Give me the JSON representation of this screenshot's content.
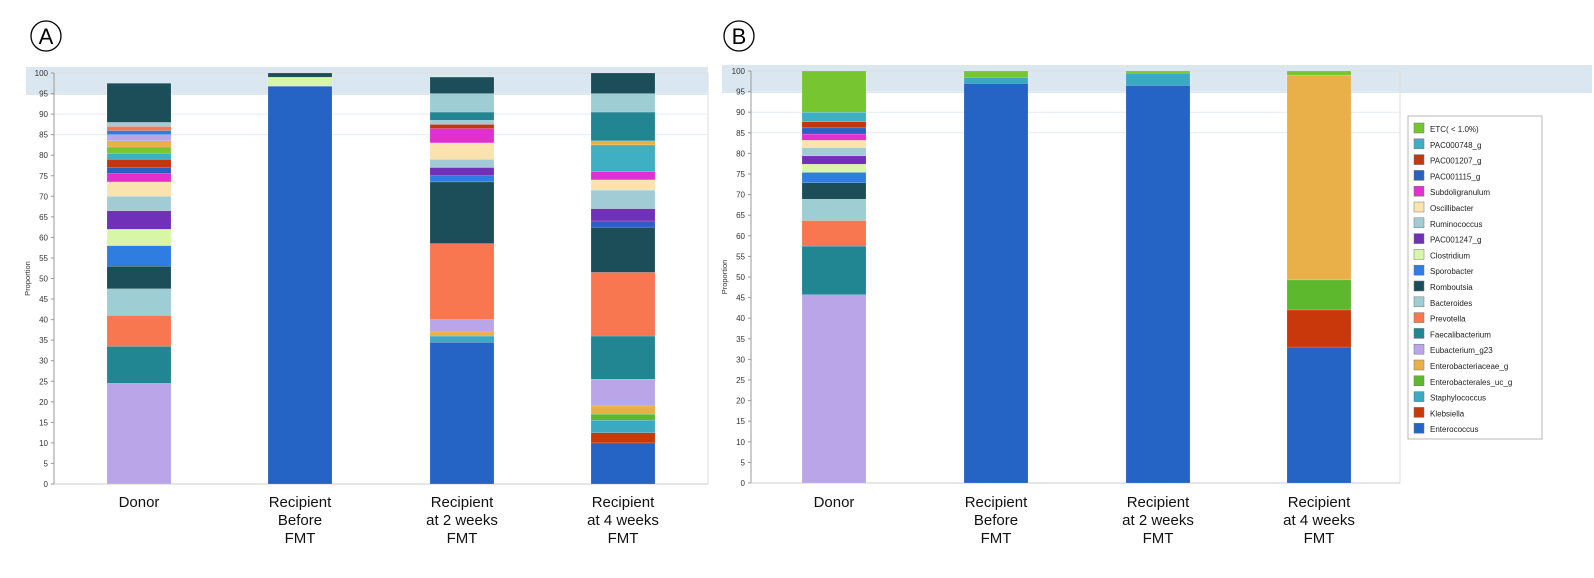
{
  "panels": {
    "a": {
      "label": "A"
    },
    "b": {
      "label": "B"
    }
  },
  "colors": {
    "Enterococcus": "#2563c4",
    "Klebsiella": "#c8380a",
    "Staphylococcus": "#3aaac2",
    "Enterobacterales_uc_g": "#5db82e",
    "Enterobacteriaceae_g": "#e9b04a",
    "Eubacterium_g23": "#b9a5e8",
    "Faecalibacterium": "#218592",
    "Prevotella": "#f87650",
    "Bacteroides": "#9fcdd4",
    "Romboutsia": "#1c4e59",
    "Sporobacter": "#2f7de0",
    "Clostridium": "#d8f7a6",
    "PAC001247_g": "#7030b8",
    "Ruminococcus": "#a1ccd6",
    "Oscillibacter": "#fbe3b0",
    "Subdoligranulum": "#e030cf",
    "PAC001115_g": "#2c5fc4",
    "PAC001207_g": "#c53510",
    "PAC000748_g": "#3fb0c4",
    "ETC": "#77c530",
    "band": "#dbe7f0",
    "axis": "#999999"
  },
  "legend": {
    "items": [
      {
        "key": "ETC",
        "label": "ETC( < 1.0%)"
      },
      {
        "key": "PAC000748_g",
        "label": "PAC000748_g"
      },
      {
        "key": "PAC001207_g",
        "label": "PAC001207_g"
      },
      {
        "key": "PAC001115_g",
        "label": "PAC001115_g"
      },
      {
        "key": "Subdoligranulum",
        "label": "Subdoligranulum"
      },
      {
        "key": "Oscillibacter",
        "label": "Oscillibacter"
      },
      {
        "key": "Ruminococcus",
        "label": "Ruminococcus"
      },
      {
        "key": "PAC001247_g",
        "label": "PAC001247_g"
      },
      {
        "key": "Clostridium",
        "label": "Clostridium"
      },
      {
        "key": "Sporobacter",
        "label": "Sporobacter"
      },
      {
        "key": "Romboutsia",
        "label": "Romboutsia"
      },
      {
        "key": "Bacteroides",
        "label": "Bacteroides"
      },
      {
        "key": "Prevotella",
        "label": "Prevotella"
      },
      {
        "key": "Faecalibacterium",
        "label": "Faecalibacterium"
      },
      {
        "key": "Eubacterium_g23",
        "label": "Eubacterium_g23"
      },
      {
        "key": "Enterobacteriaceae_g",
        "label": "Enterobacteriaceae_g"
      },
      {
        "key": "Enterobacterales_uc_g",
        "label": "Enterobacterales_uc_g"
      },
      {
        "key": "Staphylococcus",
        "label": "Staphylococcus"
      },
      {
        "key": "Klebsiella",
        "label": "Klebsiella"
      },
      {
        "key": "Enterococcus",
        "label": "Enterococcus"
      }
    ]
  },
  "chart_data": [
    {
      "type": "bar",
      "stacked": true,
      "panel": "A",
      "ylabel": "Proportion",
      "ylim": [
        0,
        100
      ],
      "yticks": [
        0,
        5,
        10,
        15,
        20,
        25,
        30,
        35,
        40,
        45,
        50,
        55,
        60,
        65,
        70,
        75,
        80,
        85,
        90,
        95,
        100
      ],
      "categories": [
        [
          "Donor"
        ],
        [
          "Recipient",
          "Before",
          "FMT"
        ],
        [
          "Recipient",
          "at 2 weeks",
          "FMT"
        ],
        [
          "Recipient",
          "at 4 weeks",
          "FMT"
        ]
      ],
      "bars": [
        [
          {
            "taxon": "Eubacterium_g23",
            "value": 24.5
          },
          {
            "taxon": "Faecalibacterium",
            "value": 9
          },
          {
            "taxon": "Prevotella",
            "value": 7.5
          },
          {
            "taxon": "Bacteroides",
            "value": 6.5
          },
          {
            "taxon": "Romboutsia",
            "value": 5.5
          },
          {
            "taxon": "Sporobacter",
            "value": 5
          },
          {
            "taxon": "Clostridium",
            "value": 4
          },
          {
            "taxon": "PAC001247_g",
            "value": 4.5
          },
          {
            "taxon": "Ruminococcus",
            "value": 3.5
          },
          {
            "taxon": "Oscillibacter",
            "value": 3.5
          },
          {
            "taxon": "Subdoligranulum",
            "value": 2
          },
          {
            "taxon": "PAC001115_g",
            "value": 1.5
          },
          {
            "taxon": "PAC001207_g",
            "value": 2
          },
          {
            "taxon": "PAC000748_g",
            "value": 1.5
          },
          {
            "taxon": "ETC",
            "value": 1.5
          },
          {
            "taxon": "Enterobacteriaceae_g",
            "value": 1.5
          },
          {
            "taxon": "Eubacterium_g23",
            "value": 1.5
          },
          {
            "taxon": "Sporobacter",
            "value": 1
          },
          {
            "taxon": "Prevotella",
            "value": 1
          },
          {
            "taxon": "Bacteroides",
            "value": 1
          },
          {
            "taxon": "Romboutsia",
            "value": 9.5
          }
        ],
        [
          {
            "taxon": "Enterococcus",
            "value": 96.8
          },
          {
            "taxon": "Clostridium",
            "value": 2.2
          },
          {
            "taxon": "Romboutsia",
            "value": 1
          }
        ],
        [
          {
            "taxon": "Enterococcus",
            "value": 34.5
          },
          {
            "taxon": "Staphylococcus",
            "value": 1.5
          },
          {
            "taxon": "Enterobacteriaceae_g",
            "value": 1
          },
          {
            "taxon": "Eubacterium_g23",
            "value": 3
          },
          {
            "taxon": "Prevotella",
            "value": 18.5
          },
          {
            "taxon": "Romboutsia",
            "value": 15
          },
          {
            "taxon": "Sporobacter",
            "value": 1.5
          },
          {
            "taxon": "PAC001247_g",
            "value": 2
          },
          {
            "taxon": "Ruminococcus",
            "value": 2
          },
          {
            "taxon": "Oscillibacter",
            "value": 4
          },
          {
            "taxon": "Subdoligranulum",
            "value": 3.5
          },
          {
            "taxon": "PAC001207_g",
            "value": 1
          },
          {
            "taxon": "Ruminococcus",
            "value": 1
          },
          {
            "taxon": "Faecalibacterium",
            "value": 2
          },
          {
            "taxon": "Bacteroides",
            "value": 4.5
          },
          {
            "taxon": "Romboutsia",
            "value": 4
          }
        ],
        [
          {
            "taxon": "Enterococcus",
            "value": 10
          },
          {
            "taxon": "Klebsiella",
            "value": 2.5
          },
          {
            "taxon": "Staphylococcus",
            "value": 3
          },
          {
            "taxon": "Enterobacterales_uc_g",
            "value": 1.5
          },
          {
            "taxon": "Enterobacteriaceae_g",
            "value": 2
          },
          {
            "taxon": "Eubacterium_g23",
            "value": 6.5
          },
          {
            "taxon": "Faecalibacterium",
            "value": 10.5
          },
          {
            "taxon": "Prevotella",
            "value": 15.5
          },
          {
            "taxon": "Romboutsia",
            "value": 11
          },
          {
            "taxon": "PAC001115_g",
            "value": 1.5
          },
          {
            "taxon": "PAC001247_g",
            "value": 3
          },
          {
            "taxon": "Ruminococcus",
            "value": 4.5
          },
          {
            "taxon": "Oscillibacter",
            "value": 2.5
          },
          {
            "taxon": "Subdoligranulum",
            "value": 2
          },
          {
            "taxon": "PAC000748_g",
            "value": 6.5
          },
          {
            "taxon": "Enterobacteriaceae_g",
            "value": 1
          },
          {
            "taxon": "Faecalibacterium",
            "value": 7
          },
          {
            "taxon": "Bacteroides",
            "value": 4.5
          },
          {
            "taxon": "Romboutsia",
            "value": 5
          }
        ]
      ]
    },
    {
      "type": "bar",
      "stacked": true,
      "panel": "B",
      "ylabel": "Proportion",
      "ylim": [
        0,
        100
      ],
      "yticks": [
        0,
        5,
        10,
        15,
        20,
        25,
        30,
        35,
        40,
        45,
        50,
        55,
        60,
        65,
        70,
        75,
        80,
        85,
        90,
        95,
        100
      ],
      "legend_position": "right",
      "categories": [
        [
          "Donor"
        ],
        [
          "Recipient",
          "Before",
          "FMT"
        ],
        [
          "Recipient",
          "at 2 weeks",
          "FMT"
        ],
        [
          "Recipient",
          "at 4 weeks",
          "FMT"
        ]
      ],
      "bars": [
        [
          {
            "taxon": "Eubacterium_g23",
            "value": 45.7
          },
          {
            "taxon": "Faecalibacterium",
            "value": 11.8
          },
          {
            "taxon": "Prevotella",
            "value": 6.2
          },
          {
            "taxon": "Bacteroides",
            "value": 5.2
          },
          {
            "taxon": "Romboutsia",
            "value": 4
          },
          {
            "taxon": "Sporobacter",
            "value": 2.5
          },
          {
            "taxon": "Clostridium",
            "value": 2
          },
          {
            "taxon": "PAC001247_g",
            "value": 2
          },
          {
            "taxon": "Ruminococcus",
            "value": 2
          },
          {
            "taxon": "Oscillibacter",
            "value": 1.8
          },
          {
            "taxon": "Subdoligranulum",
            "value": 1.5
          },
          {
            "taxon": "PAC001115_g",
            "value": 1.5
          },
          {
            "taxon": "PAC001207_g",
            "value": 1.5
          },
          {
            "taxon": "PAC000748_g",
            "value": 2.3
          },
          {
            "taxon": "ETC",
            "value": 10
          }
        ],
        [
          {
            "taxon": "Enterococcus",
            "value": 97
          },
          {
            "taxon": "Staphylococcus",
            "value": 1.5
          },
          {
            "taxon": "ETC",
            "value": 1.5
          }
        ],
        [
          {
            "taxon": "Enterococcus",
            "value": 96.5
          },
          {
            "taxon": "Staphylococcus",
            "value": 3
          },
          {
            "taxon": "ETC",
            "value": 0.5
          }
        ],
        [
          {
            "taxon": "Enterococcus",
            "value": 33
          },
          {
            "taxon": "Klebsiella",
            "value": 9
          },
          {
            "taxon": "Enterobacterales_uc_g",
            "value": 7.3
          },
          {
            "taxon": "Enterobacteriaceae_g",
            "value": 49.7
          },
          {
            "taxon": "ETC",
            "value": 1
          }
        ]
      ]
    }
  ]
}
